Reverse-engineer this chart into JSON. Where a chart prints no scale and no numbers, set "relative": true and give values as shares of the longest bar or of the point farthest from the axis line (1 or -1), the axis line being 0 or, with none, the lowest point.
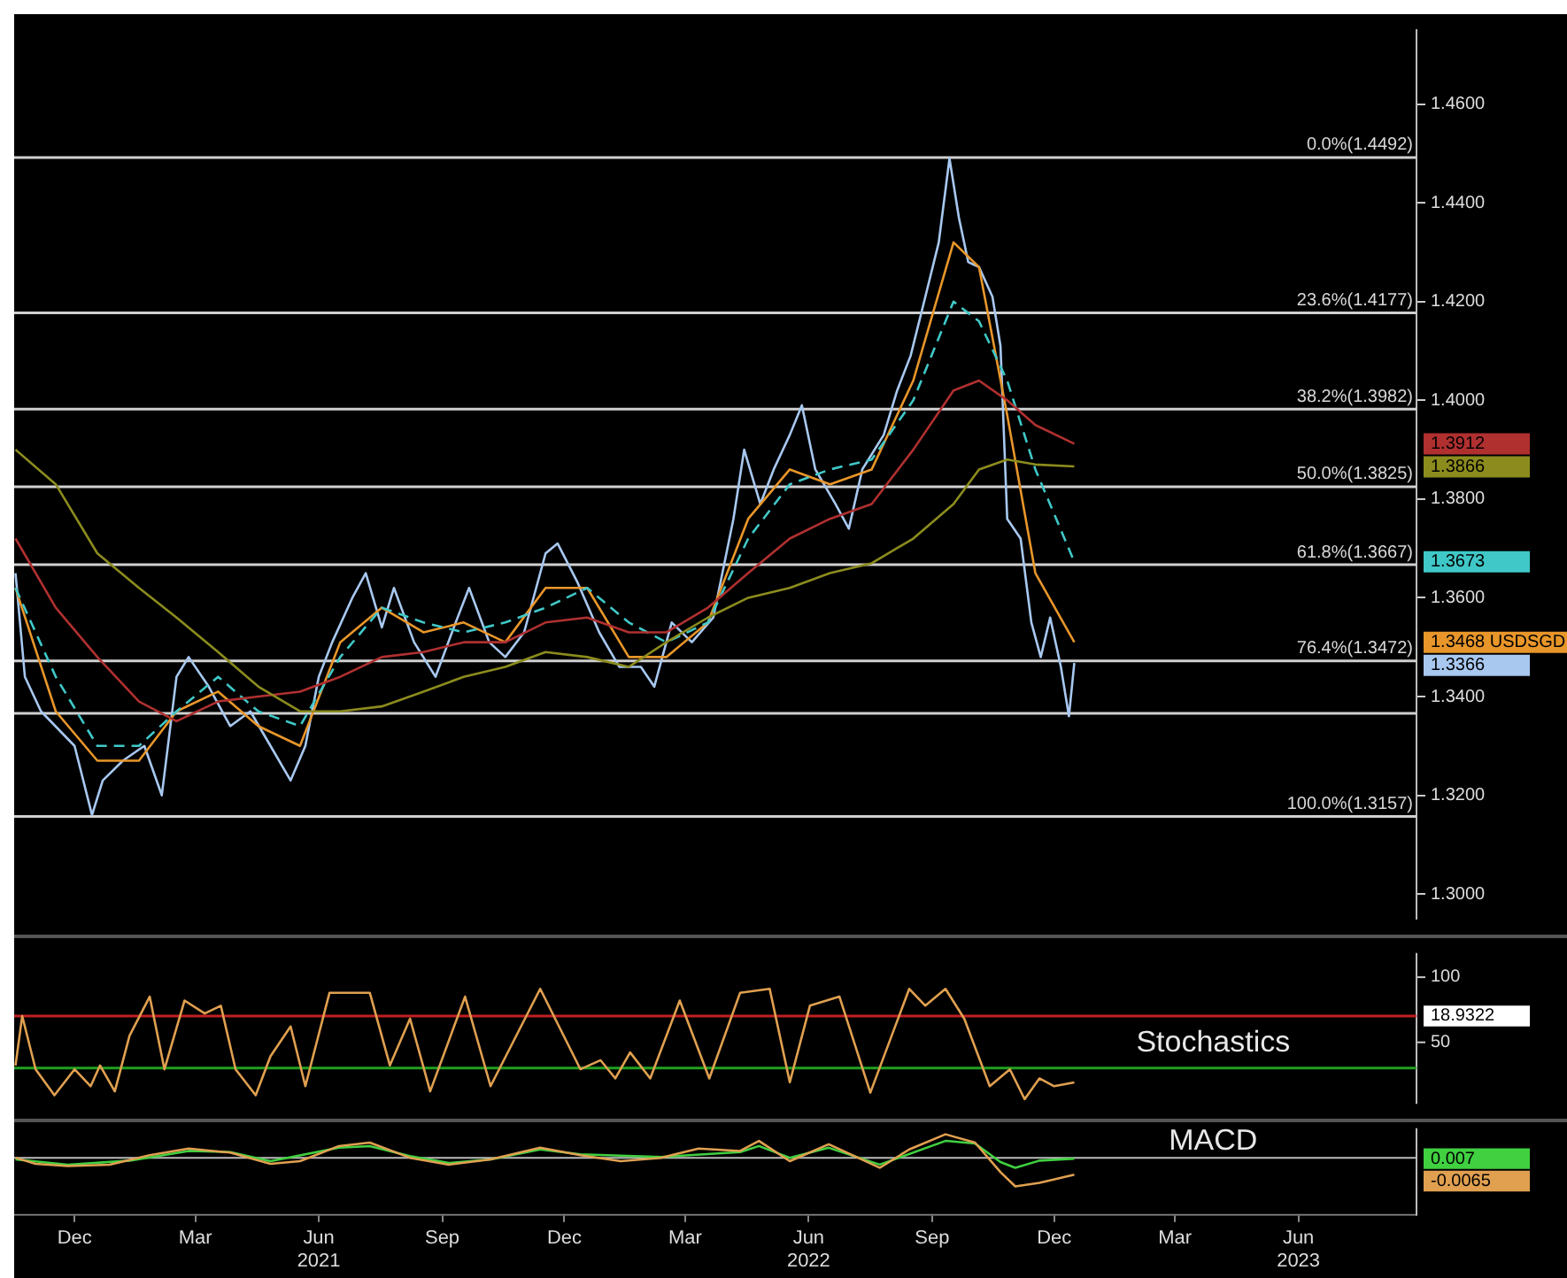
{
  "chart_data": [
    {
      "type": "line",
      "xlim": [
        "2020-10-31",
        "2023-09-11"
      ],
      "ylim": [
        1.295,
        1.475
      ],
      "yticks": [
        {
          "value": 1.3,
          "label": "1.3000"
        },
        {
          "value": 1.32,
          "label": "1.3200"
        },
        {
          "value": 1.34,
          "label": "1.3400"
        },
        {
          "value": 1.36,
          "label": "1.3600"
        },
        {
          "value": 1.38,
          "label": "1.3800"
        },
        {
          "value": 1.4,
          "label": "1.4000"
        },
        {
          "value": 1.42,
          "label": "1.4200"
        },
        {
          "value": 1.44,
          "label": "1.4400"
        },
        {
          "value": 1.46,
          "label": "1.4600"
        }
      ],
      "tick_labels": "y",
      "x": [
        "2020-11",
        "2020-12",
        "2021-01",
        "2021-02",
        "2021-03",
        "2021-04",
        "2021-05",
        "2021-06",
        "2021-07",
        "2021-08",
        "2021-09",
        "2021-10",
        "2021-11",
        "2021-12",
        "2022-01",
        "2022-02",
        "2022-03",
        "2022-04",
        "2022-05",
        "2022-06",
        "2022-07",
        "2022-08",
        "2022-09",
        "2022-10",
        "2022-10-20",
        "2022-11-10",
        "2022-12-01",
        "2022-12-30"
      ],
      "series": [
        {
          "color": "#8c8c1e",
          "values": [
            1.39,
            1.383,
            1.369,
            1.362,
            1.356,
            1.349,
            1.342,
            1.337,
            1.337,
            1.338,
            1.341,
            1.344,
            1.346,
            1.349,
            1.348,
            1.346,
            1.351,
            1.356,
            1.36,
            1.362,
            1.365,
            1.367,
            1.372,
            1.379,
            1.386,
            1.388,
            1.387,
            1.3866
          ]
        },
        {
          "color": "#b03030",
          "values": [
            1.372,
            1.358,
            1.348,
            1.339,
            1.335,
            1.339,
            1.34,
            1.341,
            1.344,
            1.348,
            1.349,
            1.351,
            1.351,
            1.355,
            1.356,
            1.353,
            1.353,
            1.358,
            1.365,
            1.372,
            1.376,
            1.379,
            1.39,
            1.402,
            1.404,
            1.4,
            1.395,
            1.3912
          ]
        },
        {
          "color": "#40c8c8",
          "line_style": "dashed",
          "values": [
            1.362,
            1.344,
            1.33,
            1.33,
            1.337,
            1.344,
            1.337,
            1.334,
            1.348,
            1.358,
            1.355,
            1.353,
            1.355,
            1.358,
            1.362,
            1.355,
            1.351,
            1.355,
            1.372,
            1.383,
            1.386,
            1.388,
            1.4,
            1.42,
            1.416,
            1.404,
            1.386,
            1.3673
          ]
        },
        {
          "color": "#e8962a",
          "values": [
            1.362,
            1.337,
            1.327,
            1.327,
            1.337,
            1.341,
            1.334,
            1.33,
            1.351,
            1.358,
            1.353,
            1.355,
            1.351,
            1.362,
            1.362,
            1.348,
            1.348,
            1.355,
            1.376,
            1.386,
            1.383,
            1.386,
            1.404,
            1.432,
            1.427,
            1.397,
            1.365,
            1.351
          ]
        },
        {
          "color": "#a8c8f0",
          "x": [
            "2020-11-01",
            "2020-11-08",
            "2020-11-20",
            "2020-12-15",
            "2020-12-28",
            "2021-01-05",
            "2021-01-20",
            "2021-02-05",
            "2021-02-18",
            "2021-03-01",
            "2021-03-10",
            "2021-03-25",
            "2021-04-10",
            "2021-04-25",
            "2021-05-10",
            "2021-05-25",
            "2021-06-05",
            "2021-06-15",
            "2021-06-25",
            "2021-07-10",
            "2021-07-20",
            "2021-08-01",
            "2021-08-10",
            "2021-08-25",
            "2021-09-10",
            "2021-09-25",
            "2021-10-05",
            "2021-10-20",
            "2021-11-01",
            "2021-11-15",
            "2021-12-01",
            "2021-12-10",
            "2021-12-25",
            "2022-01-10",
            "2022-01-25",
            "2022-02-10",
            "2022-02-20",
            "2022-03-05",
            "2022-03-20",
            "2022-04-05",
            "2022-04-20",
            "2022-04-28",
            "2022-05-10",
            "2022-05-20",
            "2022-06-01",
            "2022-06-10",
            "2022-06-20",
            "2022-07-05",
            "2022-07-15",
            "2022-07-25",
            "2022-08-10",
            "2022-08-20",
            "2022-08-30",
            "2022-09-10",
            "2022-09-20",
            "2022-09-28",
            "2022-10-05",
            "2022-10-12",
            "2022-10-20",
            "2022-10-30",
            "2022-11-05",
            "2022-11-10",
            "2022-11-20",
            "2022-11-28",
            "2022-12-05",
            "2022-12-12",
            "2022-12-20",
            "2022-12-26",
            "2022-12-30"
          ],
          "values": [
            1.365,
            1.344,
            1.337,
            1.33,
            1.316,
            1.323,
            1.327,
            1.33,
            1.32,
            1.344,
            1.348,
            1.342,
            1.334,
            1.337,
            1.33,
            1.323,
            1.33,
            1.344,
            1.351,
            1.36,
            1.365,
            1.354,
            1.362,
            1.351,
            1.344,
            1.355,
            1.362,
            1.351,
            1.348,
            1.353,
            1.369,
            1.371,
            1.363,
            1.353,
            1.346,
            1.346,
            1.342,
            1.355,
            1.351,
            1.356,
            1.376,
            1.39,
            1.379,
            1.386,
            1.393,
            1.399,
            1.386,
            1.379,
            1.374,
            1.386,
            1.393,
            1.402,
            1.409,
            1.421,
            1.432,
            1.449,
            1.437,
            1.428,
            1.427,
            1.421,
            1.411,
            1.376,
            1.372,
            1.355,
            1.348,
            1.356,
            1.346,
            1.336,
            1.3468
          ]
        }
      ],
      "ref_lines": [
        {
          "axis": "y",
          "value": 1.4492,
          "label": "0.0%(1.4492)"
        },
        {
          "axis": "y",
          "value": 1.4177,
          "label": "23.6%(1.4177)"
        },
        {
          "axis": "y",
          "value": 1.3982,
          "label": "38.2%(1.3982)"
        },
        {
          "axis": "y",
          "value": 1.3825,
          "label": "50.0%(1.3825)"
        },
        {
          "axis": "y",
          "value": 1.3667,
          "label": "61.8%(1.3667)"
        },
        {
          "axis": "y",
          "value": 1.3472,
          "label": "76.4%(1.3472)"
        },
        {
          "axis": "y",
          "value": 1.3366
        },
        {
          "axis": "y",
          "value": 1.3157,
          "label": "100.0%(1.3157)"
        }
      ],
      "annotations": [
        "1.3912",
        "1.3866",
        "1.3673",
        "1.3468 USDSGD",
        "1.3366"
      ]
    },
    {
      "type": "line",
      "title": "Stochastics",
      "xlim": [
        "2020-10-31",
        "2023-09-11"
      ],
      "ylim": [
        3,
        118
      ],
      "yticks": [
        50,
        100
      ],
      "tick_labels": "y",
      "x": [
        "2020-11-01",
        "2020-11-06",
        "2020-11-16",
        "2020-11-30",
        "2020-12-15",
        "2020-12-27",
        "2021-01-03",
        "2021-01-14",
        "2021-01-25",
        "2021-02-09",
        "2021-02-20",
        "2021-03-07",
        "2021-03-22",
        "2021-04-03",
        "2021-04-14",
        "2021-04-29",
        "2021-05-10",
        "2021-05-25",
        "2021-06-05",
        "2021-06-23",
        "2021-07-23",
        "2021-08-07",
        "2021-08-22",
        "2021-09-06",
        "2021-10-02",
        "2021-10-21",
        "2021-11-27",
        "2021-12-27",
        "2022-01-11",
        "2022-01-22",
        "2022-02-02",
        "2022-02-17",
        "2022-03-11",
        "2022-04-02",
        "2022-04-25",
        "2022-05-17",
        "2022-06-01",
        "2022-06-16",
        "2022-07-08",
        "2022-07-31",
        "2022-08-29",
        "2022-09-10",
        "2022-09-25",
        "2022-10-09",
        "2022-10-28",
        "2022-11-12",
        "2022-11-23",
        "2022-12-04",
        "2022-12-15",
        "2022-12-30"
      ],
      "series": [
        {
          "color": "#e0a050",
          "values": [
            32,
            70,
            29,
            9,
            29,
            16,
            32,
            12,
            55,
            85,
            29,
            82,
            72,
            78,
            29,
            9,
            39,
            62,
            16,
            88,
            88,
            32,
            68,
            12,
            85,
            16,
            91,
            29,
            36,
            22,
            42,
            22,
            82,
            22,
            88,
            91,
            19,
            78,
            85,
            11,
            91,
            78,
            91,
            68,
            16,
            29,
            6,
            22,
            16,
            19
          ]
        }
      ],
      "ref_lines": [
        {
          "axis": "y",
          "value": 70,
          "color": "#c02020"
        },
        {
          "axis": "y",
          "value": 30,
          "color": "#20a020"
        }
      ],
      "annotations": [
        "18.9322"
      ]
    },
    {
      "type": "line",
      "title": "MACD",
      "relative": true,
      "xlim": [
        "2020-10-31",
        "2023-09-11"
      ],
      "tick_labels": "x",
      "xticks": [
        {
          "value": "2020-12-15",
          "label": "Dec"
        },
        {
          "value": "2021-03-15",
          "label": "Mar"
        },
        {
          "value": "2021-06-15",
          "label": "Jun\n2021"
        },
        {
          "value": "2021-09-15",
          "label": "Sep"
        },
        {
          "value": "2021-12-15",
          "label": "Dec"
        },
        {
          "value": "2022-03-15",
          "label": "Mar"
        },
        {
          "value": "2022-06-15",
          "label": "Jun\n2022"
        },
        {
          "value": "2022-09-15",
          "label": "Sep"
        },
        {
          "value": "2022-12-15",
          "label": "Dec"
        },
        {
          "value": "2023-03-15",
          "label": "Mar"
        },
        {
          "value": "2023-06-15",
          "label": "Jun\n2023"
        }
      ],
      "series": [
        {
          "color": "#e0a050",
          "x": [
            "2020-11-01",
            "2020-11-16",
            "2020-12-10",
            "2021-01-10",
            "2021-02-09",
            "2021-03-10",
            "2021-04-10",
            "2021-05-10",
            "2021-06-01",
            "2021-06-30",
            "2021-07-23",
            "2021-08-22",
            "2021-09-20",
            "2021-10-21",
            "2021-11-27",
            "2021-12-27",
            "2022-01-26",
            "2022-02-25",
            "2022-03-25",
            "2022-04-25",
            "2022-05-09",
            "2022-06-01",
            "2022-06-30",
            "2022-08-07",
            "2022-08-29",
            "2022-09-25",
            "2022-10-17",
            "2022-11-05",
            "2022-11-16",
            "2022-12-04",
            "2022-12-30"
          ],
          "values": [
            0,
            -0.21,
            -0.29,
            -0.24,
            0.09,
            0.32,
            0.18,
            -0.21,
            -0.12,
            0.41,
            0.53,
            0,
            -0.24,
            -0.06,
            0.35,
            0.09,
            -0.12,
            0,
            0.32,
            0.24,
            0.59,
            -0.12,
            0.47,
            -0.35,
            0.29,
            0.82,
            0.53,
            -0.5,
            -1,
            -0.88,
            -0.59
          ]
        },
        {
          "color": "#40d040",
          "x": [
            "2020-11-01",
            "2020-12-10",
            "2021-01-25",
            "2021-03-10",
            "2021-04-10",
            "2021-05-10",
            "2021-06-30",
            "2021-07-23",
            "2021-08-22",
            "2021-09-20",
            "2021-10-21",
            "2021-11-27",
            "2021-12-27",
            "2022-02-25",
            "2022-04-25",
            "2022-05-09",
            "2022-06-01",
            "2022-06-30",
            "2022-08-07",
            "2022-09-25",
            "2022-10-17",
            "2022-11-05",
            "2022-11-16",
            "2022-12-04",
            "2022-12-30"
          ],
          "values": [
            -0.06,
            -0.24,
            -0.1,
            0.24,
            0.2,
            -0.12,
            0.35,
            0.41,
            0.06,
            -0.18,
            -0.06,
            0.29,
            0.12,
            0.03,
            0.2,
            0.41,
            0,
            0.35,
            -0.24,
            0.59,
            0.5,
            -0.15,
            -0.35,
            -0.1,
            -0.03
          ]
        }
      ],
      "annotations": [
        "0.007",
        "-0.0065"
      ]
    }
  ]
}
